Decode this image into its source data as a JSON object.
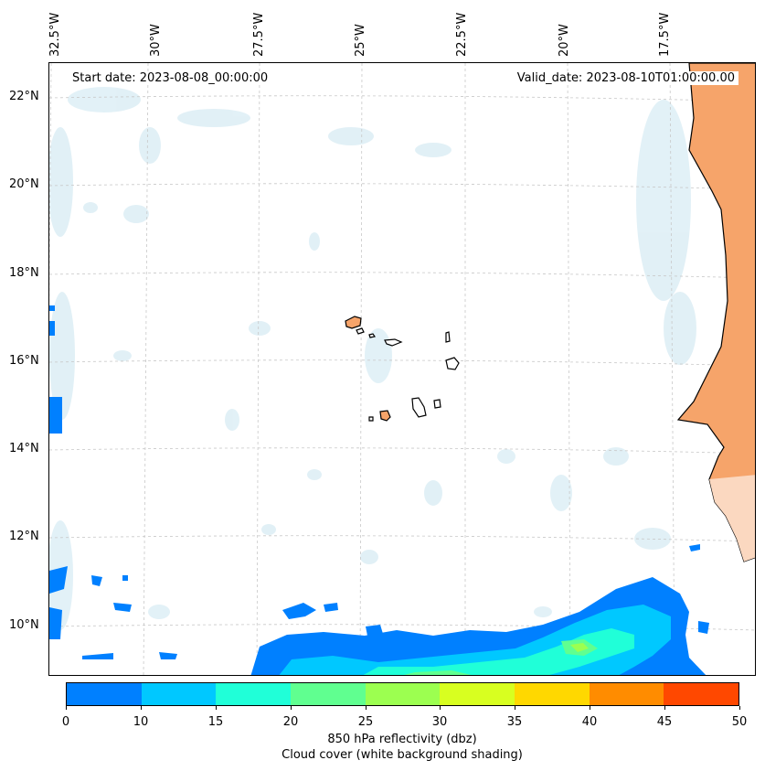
{
  "header": {
    "start_date": "Start date: 2023-08-08_00:00:00",
    "valid_date": "Valid_date: 2023-08-10T01:00:00.00"
  },
  "axes": {
    "lon_labels": [
      "32.5°W",
      "30°W",
      "27.5°W",
      "25°W",
      "22.5°W",
      "20°W",
      "17.5°W"
    ],
    "lat_labels": [
      "22°N",
      "20°N",
      "18°N",
      "16°N",
      "14°N",
      "12°N",
      "10°N"
    ]
  },
  "colorbar": {
    "ticks": [
      "0",
      "10",
      "15",
      "20",
      "25",
      "30",
      "35",
      "40",
      "45",
      "50"
    ],
    "colors": [
      "#0080ff",
      "#00c8ff",
      "#20ffd8",
      "#60ff90",
      "#9cff50",
      "#d8ff20",
      "#ffd800",
      "#ff8c00",
      "#ff4800"
    ],
    "label_line1": "850 hPa reflectivity (dbz)",
    "label_line2": "Cloud cover (white background shading)"
  },
  "colors": {
    "land": "#f6a46a",
    "cloud": "#d8ecf4",
    "grid": "#c8c8c8",
    "coast": "#000000"
  }
}
